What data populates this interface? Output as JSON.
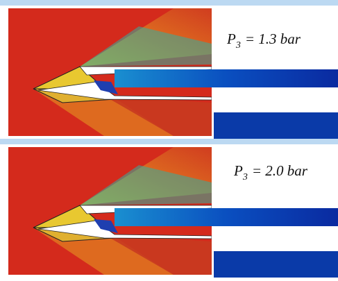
{
  "panels": [
    {
      "label": {
        "symbol": "P",
        "subscript": "3",
        "value": "= 1.3 bar"
      }
    },
    {
      "label": {
        "symbol": "P",
        "subscript": "3",
        "value": "= 2.0 bar"
      }
    }
  ]
}
